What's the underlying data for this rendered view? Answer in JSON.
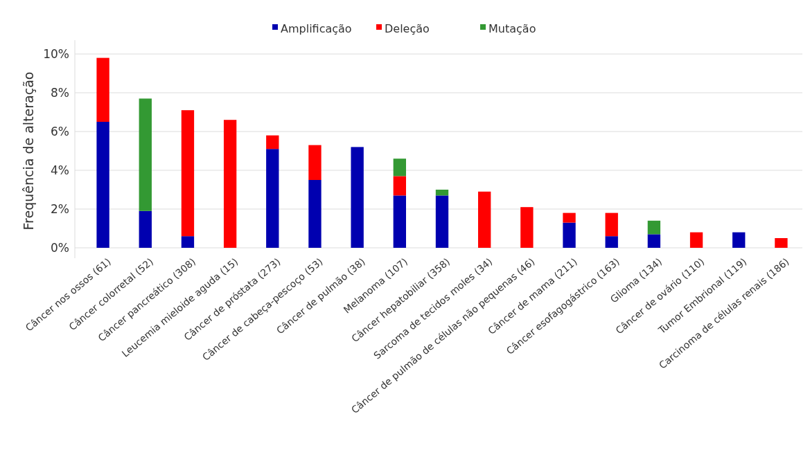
{
  "chart_data": {
    "type": "bar",
    "stacked": true,
    "ylabel": "Frequência de alteração",
    "categories": [
      "Câncer nos ossos (61)",
      "Câncer colorretal (52)",
      "Câncer pancreático (308)",
      "Leucemia mieloide aguda (15)",
      "Câncer de próstata (273)",
      "Câncer de cabeça-pescoço (53)",
      "Câncer de pulmão (38)",
      "Melanoma (107)",
      "Câncer hepatobiliar (358)",
      "Sarcoma de tecidos moles (34)",
      "Câncer de pulmão de células não pequenas (46)",
      "Câncer de mama (211)",
      "Câncer esofagogástrico (163)",
      "Glioma (134)",
      "Câncer de ovário (110)",
      "Tumor Embrional (119)",
      "Carcinoma de células renais (186)"
    ],
    "series": [
      {
        "name": "Amplificação",
        "color": "#0000b0",
        "values": [
          6.5,
          1.9,
          0.6,
          0,
          5.1,
          3.5,
          5.2,
          2.7,
          2.7,
          0,
          0,
          1.3,
          0.6,
          0.7,
          0,
          0.8,
          0
        ]
      },
      {
        "name": "Deleção",
        "color": "#ff0000",
        "values": [
          3.3,
          0,
          6.5,
          6.6,
          0.7,
          1.8,
          0,
          1.0,
          0,
          2.9,
          2.1,
          0.5,
          1.2,
          0,
          0.8,
          0,
          0.5
        ]
      },
      {
        "name": "Mutação",
        "color": "#339933",
        "values": [
          0,
          5.8,
          0,
          0,
          0,
          0,
          0,
          0.9,
          0.3,
          0,
          0,
          0,
          0,
          0.7,
          0,
          0,
          0
        ]
      }
    ],
    "ylim": [
      0,
      10
    ],
    "yticks": [
      {
        "value": 0,
        "label": "0%"
      },
      {
        "value": 2,
        "label": "2%"
      },
      {
        "value": 4,
        "label": "4%"
      },
      {
        "value": 6,
        "label": "6%"
      },
      {
        "value": 8,
        "label": "8%"
      },
      {
        "value": 10,
        "label": "10%"
      }
    ],
    "grid": "y",
    "legend": "top"
  }
}
